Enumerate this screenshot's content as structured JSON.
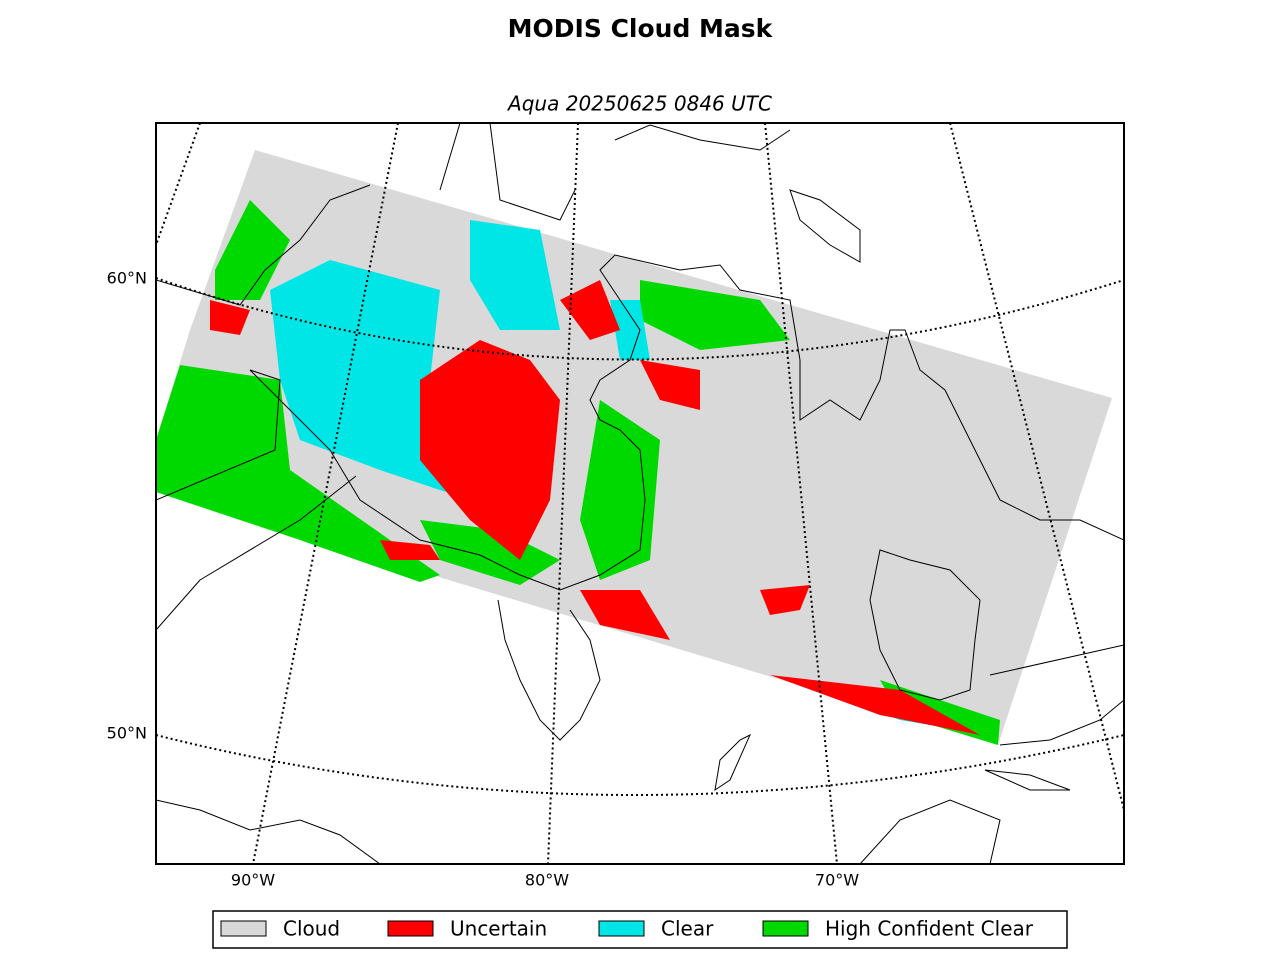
{
  "title": "MODIS Cloud Mask",
  "subtitle": "Aqua 20250625 0846 UTC",
  "lat_labels": [
    "60°N",
    "50°N"
  ],
  "lon_labels": [
    "90°W",
    "80°W",
    "70°W"
  ],
  "legend": [
    {
      "label": "Cloud",
      "color": "#d9d9d9"
    },
    {
      "label": "Uncertain",
      "color": "#ff0000"
    },
    {
      "label": "Clear",
      "color": "#00e5e5"
    },
    {
      "label": "High Confident Clear",
      "color": "#00d900"
    }
  ]
}
